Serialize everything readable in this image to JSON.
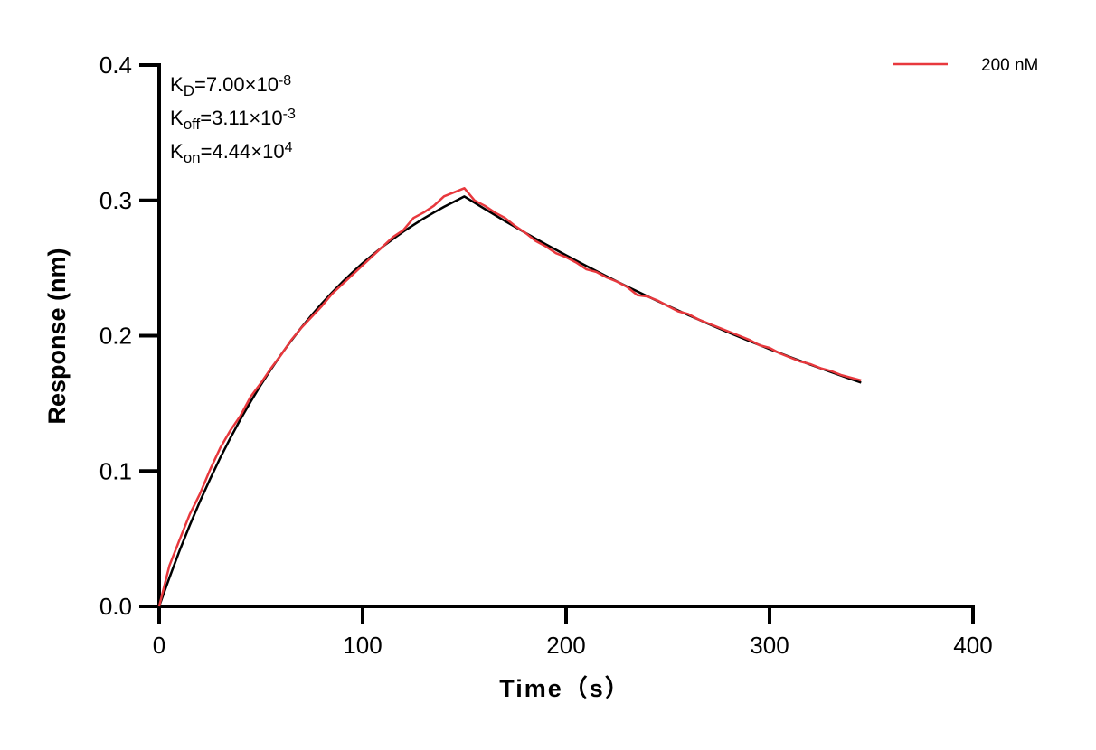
{
  "chart_data": {
    "type": "line",
    "title": "",
    "xlabel": "Time（s）",
    "ylabel": "Response (nm)",
    "xlim": [
      0,
      400
    ],
    "ylim": [
      0,
      0.4
    ],
    "x_ticks": [
      "0",
      "100",
      "200",
      "300",
      "400"
    ],
    "y_ticks": [
      "0.0",
      "0.1",
      "0.2",
      "0.3",
      "0.4"
    ],
    "grid": false,
    "legend_position": "top-right",
    "annotations": [
      {
        "main": "K",
        "sub": "D",
        "rest": "=7.00×10",
        "sup": "-8"
      },
      {
        "main": "K",
        "sub": "off",
        "rest": "=3.11×10",
        "sup": "-3"
      },
      {
        "main": "K",
        "sub": "on",
        "rest": "=4.44×10",
        "sup": "4"
      }
    ],
    "series": [
      {
        "name": "200 nM",
        "color": "#e8383d",
        "x": [
          0,
          5,
          10,
          15,
          20,
          25,
          30,
          35,
          40,
          45,
          50,
          55,
          60,
          65,
          70,
          75,
          80,
          85,
          90,
          95,
          100,
          105,
          110,
          115,
          120,
          125,
          130,
          135,
          140,
          145,
          150,
          155,
          160,
          165,
          170,
          175,
          180,
          185,
          190,
          195,
          200,
          205,
          210,
          215,
          220,
          225,
          230,
          235,
          240,
          245,
          250,
          255,
          260,
          265,
          270,
          275,
          280,
          285,
          290,
          295,
          300,
          305,
          310,
          315,
          320,
          325,
          330,
          335,
          340,
          345
        ],
        "y": [
          0,
          0.03,
          0.049,
          0.068,
          0.083,
          0.101,
          0.117,
          0.13,
          0.141,
          0.155,
          0.165,
          0.176,
          0.186,
          0.197,
          0.206,
          0.214,
          0.222,
          0.231,
          0.238,
          0.245,
          0.252,
          0.259,
          0.266,
          0.273,
          0.278,
          0.287,
          0.291,
          0.296,
          0.303,
          0.306,
          0.309,
          0.3,
          0.296,
          0.291,
          0.287,
          0.281,
          0.276,
          0.27,
          0.266,
          0.261,
          0.258,
          0.254,
          0.249,
          0.247,
          0.243,
          0.24,
          0.236,
          0.23,
          0.229,
          0.226,
          0.222,
          0.218,
          0.216,
          0.212,
          0.209,
          0.206,
          0.203,
          0.2,
          0.197,
          0.193,
          0.191,
          0.187,
          0.184,
          0.181,
          0.179,
          0.176,
          0.174,
          0.171,
          0.169,
          0.167
        ]
      },
      {
        "color": "#000000",
        "x": [
          0,
          5,
          10,
          15,
          20,
          25,
          30,
          35,
          40,
          45,
          50,
          55,
          60,
          65,
          70,
          75,
          80,
          85,
          90,
          95,
          100,
          105,
          110,
          115,
          120,
          125,
          130,
          135,
          140,
          145,
          150,
          160,
          170,
          180,
          190,
          200,
          210,
          220,
          230,
          240,
          250,
          260,
          270,
          280,
          290,
          300,
          310,
          320,
          330,
          340,
          345
        ],
        "y": [
          0,
          0.0211,
          0.041,
          0.0598,
          0.0774,
          0.094,
          0.1097,
          0.1244,
          0.1383,
          0.1513,
          0.1637,
          0.1753,
          0.1862,
          0.1965,
          0.2062,
          0.2153,
          0.2239,
          0.232,
          0.2396,
          0.2468,
          0.2536,
          0.2599,
          0.2659,
          0.2715,
          0.2769,
          0.2819,
          0.2866,
          0.291,
          0.2952,
          0.2991,
          0.3029,
          0.2937,
          0.2847,
          0.276,
          0.2676,
          0.2594,
          0.2515,
          0.2438,
          0.2363,
          0.2291,
          0.2221,
          0.2153,
          0.2087,
          0.2023,
          0.1961,
          0.1901,
          0.1843,
          0.1786,
          0.1732,
          0.1679,
          0.1653
        ]
      }
    ]
  }
}
